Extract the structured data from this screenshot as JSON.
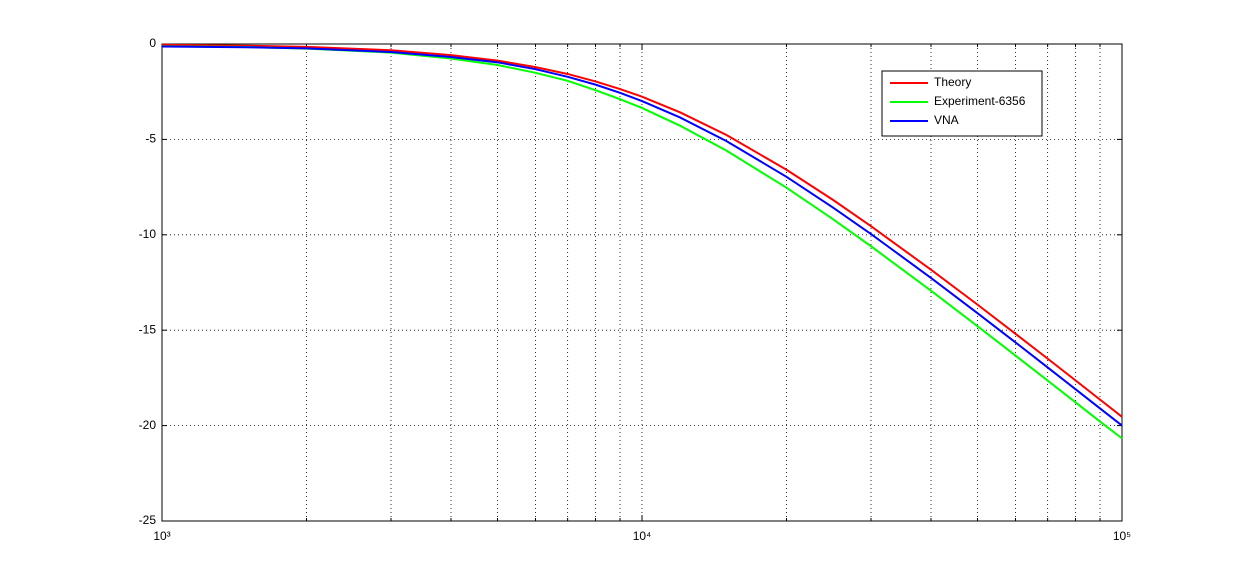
{
  "chart_data": {
    "type": "line",
    "x": [
      1000,
      1500,
      2000,
      3000,
      4000,
      5000,
      6000,
      7000,
      8000,
      9000,
      10000,
      12000,
      15000,
      20000,
      25000,
      30000,
      40000,
      50000,
      60000,
      70000,
      80000,
      90000,
      100000
    ],
    "series": [
      {
        "name": "Theory",
        "color": "#ff0000",
        "values": [
          -0.04,
          -0.09,
          -0.15,
          -0.33,
          -0.58,
          -0.87,
          -1.21,
          -1.57,
          -1.96,
          -2.36,
          -2.76,
          -3.58,
          -4.77,
          -6.59,
          -8.17,
          -9.55,
          -11.83,
          -13.66,
          -15.19,
          -16.49,
          -17.63,
          -18.64,
          -19.54
        ]
      },
      {
        "name": "Experiment-6356",
        "color": "#00ff00",
        "values": [
          -0.12,
          -0.16,
          -0.24,
          -0.45,
          -0.76,
          -1.1,
          -1.51,
          -1.93,
          -2.42,
          -2.89,
          -3.35,
          -4.28,
          -5.59,
          -7.53,
          -9.18,
          -10.6,
          -12.93,
          -14.79,
          -16.33,
          -17.64,
          -18.78,
          -19.79,
          -20.67
        ]
      },
      {
        "name": "VNA",
        "color": "#0000ff",
        "values": [
          -0.13,
          -0.17,
          -0.23,
          -0.42,
          -0.68,
          -0.96,
          -1.32,
          -1.72,
          -2.13,
          -2.56,
          -2.99,
          -3.85,
          -5.09,
          -6.96,
          -8.57,
          -9.96,
          -12.26,
          -14.11,
          -15.64,
          -16.95,
          -18.09,
          -19.1,
          -20.0
        ]
      }
    ],
    "xscale": "log",
    "xlim": [
      1000,
      100000
    ],
    "xticks": [
      {
        "value": 1000,
        "label": "10³"
      },
      {
        "value": 10000,
        "label": "10⁴"
      },
      {
        "value": 100000,
        "label": "10⁵"
      }
    ],
    "xminorticks": [
      2000,
      3000,
      4000,
      5000,
      6000,
      7000,
      8000,
      9000,
      20000,
      30000,
      40000,
      50000,
      60000,
      70000,
      80000,
      90000
    ],
    "ylim": [
      -25,
      0
    ],
    "yticks": [
      -25,
      -20,
      -15,
      -10,
      -5,
      0
    ],
    "grid": true,
    "legend": "northeast"
  }
}
